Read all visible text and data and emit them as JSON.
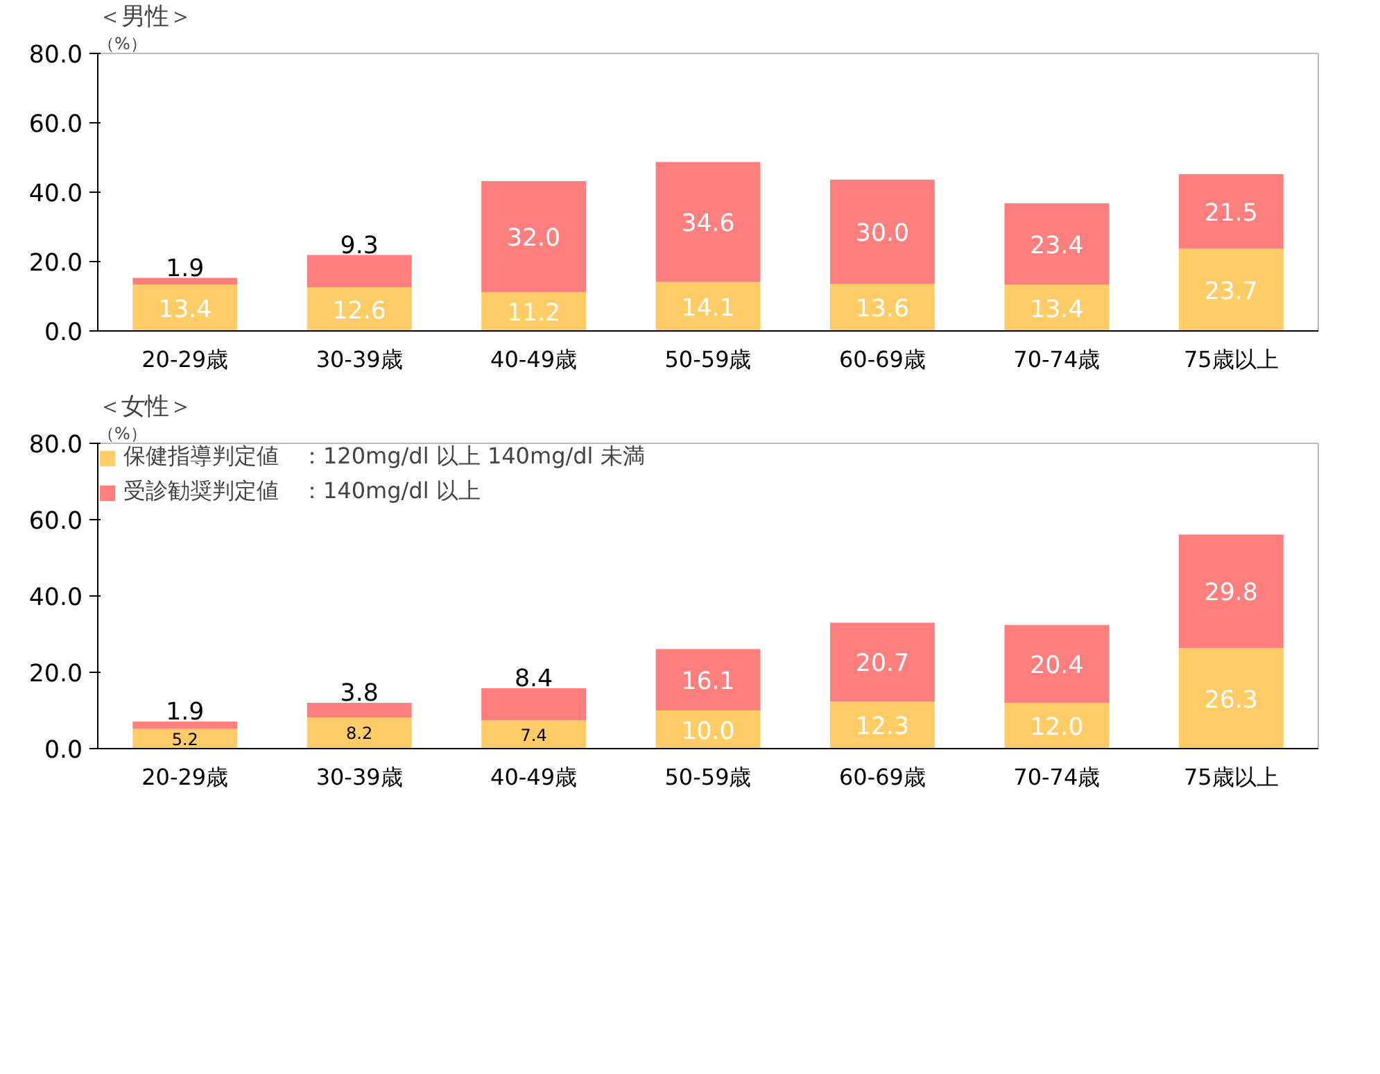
{
  "chart_data": [
    {
      "type": "bar",
      "stacked": true,
      "title": "＜男性＞",
      "ylabel": "（%）",
      "categories": [
        "20-29歳",
        "30-39歳",
        "40-49歳",
        "50-59歳",
        "60-69歳",
        "70-74歳",
        "75歳以上"
      ],
      "series": [
        {
          "color": "#ffcc66",
          "values": [
            13.4,
            12.6,
            11.2,
            14.1,
            13.6,
            13.4,
            23.7
          ],
          "value_labels": [
            "13.4",
            "12.6",
            "11.2",
            "14.1",
            "13.6",
            "13.4",
            "23.7"
          ]
        },
        {
          "color": "#ff7f7f",
          "values": [
            1.9,
            9.3,
            32.0,
            34.6,
            30.0,
            23.4,
            21.5
          ],
          "value_labels": [
            "1.9",
            "9.3",
            "32.0",
            "34.6",
            "30.0",
            "23.4",
            "21.5"
          ]
        }
      ],
      "ylim": [
        0,
        80
      ],
      "yticks": [
        {
          "value": 0,
          "label": "0.0"
        },
        {
          "value": 20,
          "label": "20.0"
        },
        {
          "value": 40,
          "label": "40.0"
        },
        {
          "value": 60,
          "label": "60.0"
        },
        {
          "value": 80,
          "label": "80.0"
        }
      ],
      "grid": false,
      "legend": false
    },
    {
      "type": "bar",
      "stacked": true,
      "title": "＜女性＞",
      "ylabel": "（%）",
      "categories": [
        "20-29歳",
        "30-39歳",
        "40-49歳",
        "50-59歳",
        "60-69歳",
        "70-74歳",
        "75歳以上"
      ],
      "series": [
        {
          "name": "保健指導判定値　：120mg/dl 以上 140mg/dl 未満",
          "color": "#ffcc66",
          "values": [
            5.2,
            8.2,
            7.4,
            10.0,
            12.3,
            12.0,
            26.3
          ],
          "value_labels": [
            "5.2",
            "8.2",
            "7.4",
            "10.0",
            "12.3",
            "12.0",
            "26.3"
          ]
        },
        {
          "name": "受診勧奨判定値　：140mg/dl 以上",
          "color": "#ff7f7f",
          "values": [
            1.9,
            3.8,
            8.4,
            16.1,
            20.7,
            20.4,
            29.8
          ],
          "value_labels": [
            "1.9",
            "3.8",
            "8.4",
            "16.1",
            "20.7",
            "20.4",
            "29.8"
          ]
        }
      ],
      "ylim": [
        0,
        80
      ],
      "yticks": [
        {
          "value": 0,
          "label": "0.0"
        },
        {
          "value": 20,
          "label": "20.0"
        },
        {
          "value": 40,
          "label": "40.0"
        },
        {
          "value": 60,
          "label": "60.0"
        },
        {
          "value": 80,
          "label": "80.0"
        }
      ],
      "grid": false,
      "legend": "top left"
    }
  ]
}
